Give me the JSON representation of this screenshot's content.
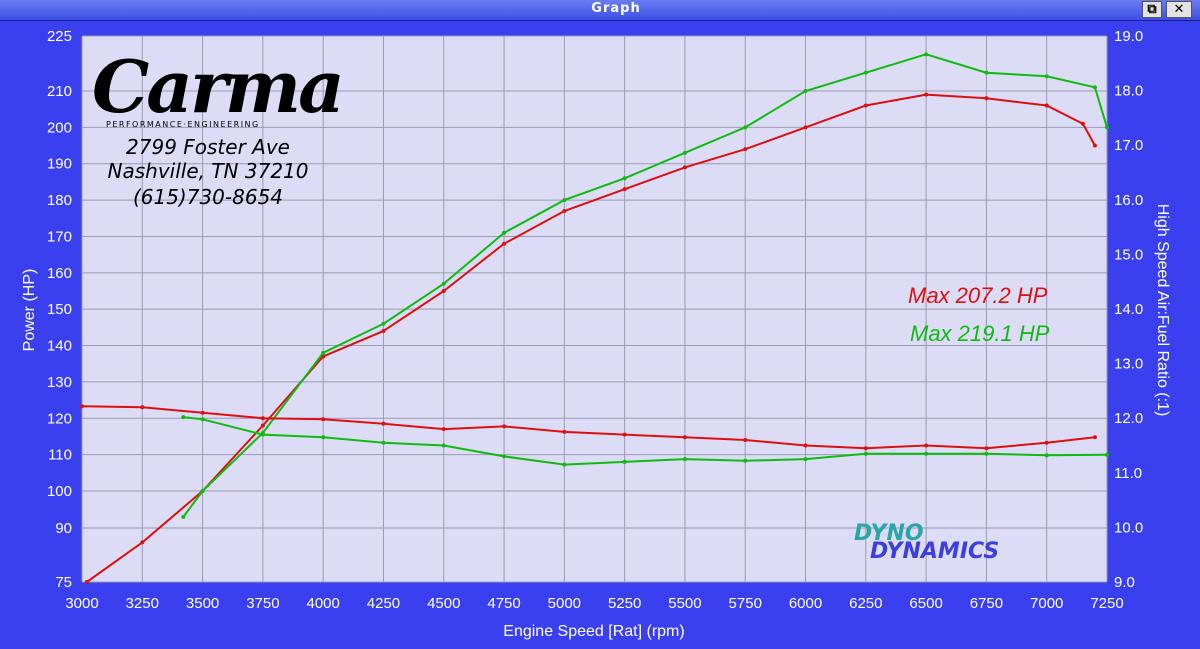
{
  "window": {
    "title": "Graph",
    "restore_glyph": "⧉",
    "close_glyph": "✕"
  },
  "logo": {
    "name": "Carma",
    "tagline": "PERFORMANCE·ENGINEERING",
    "address_line1": "2799 Foster Ave",
    "address_line2": "Nashville, TN 37210",
    "phone": "(615)730-8654"
  },
  "watermark": {
    "line1": "DYNO",
    "line2": "DYNAMICS"
  },
  "colors": {
    "background": "#3a3ff0",
    "plot_bg": "#dcdcf6",
    "grid": "#9a9ab0",
    "run1": "#dd1010",
    "run2": "#10bb10",
    "axis_text": "#ffffff"
  },
  "chart_data": {
    "type": "line",
    "xlabel": "Engine Speed [Rat] (rpm)",
    "ylabel_left": "Power (HP)",
    "ylabel_right": "High Speed Air:Fuel Ratio (:1)",
    "xlim": [
      3000,
      7250
    ],
    "x_ticks": [
      3000,
      3250,
      3500,
      3750,
      4000,
      4250,
      4500,
      4750,
      5000,
      5250,
      5500,
      5750,
      6000,
      6250,
      6500,
      6750,
      7000,
      7250
    ],
    "y_left_ticks": [
      75,
      90,
      100,
      110,
      120,
      130,
      140,
      150,
      160,
      170,
      180,
      190,
      200,
      210,
      225
    ],
    "y_right_ticks": [
      9.0,
      10.0,
      11.0,
      12.0,
      13.0,
      14.0,
      15.0,
      16.0,
      17.0,
      18.0,
      19.0
    ],
    "annotations": [
      {
        "text": "Max 207.2 HP",
        "series": "run1"
      },
      {
        "text": "Max 219.1 HP",
        "series": "run2"
      }
    ],
    "series": [
      {
        "id": "run1",
        "measure": "power",
        "x": [
          3020,
          3250,
          3500,
          3750,
          4000,
          4250,
          4500,
          4750,
          5000,
          5250,
          5500,
          5750,
          6000,
          6250,
          6500,
          6750,
          7000,
          7150,
          7200
        ],
        "y": [
          75,
          86,
          100,
          118,
          137,
          144,
          155,
          168,
          177,
          183,
          189,
          194,
          200,
          206,
          209,
          208,
          206,
          201,
          195
        ]
      },
      {
        "id": "run2",
        "measure": "power",
        "x": [
          3420,
          3500,
          3750,
          4000,
          4250,
          4500,
          4750,
          5000,
          5250,
          5500,
          5750,
          6000,
          6250,
          6500,
          6750,
          7000,
          7200,
          7250
        ],
        "y": [
          93,
          100,
          116,
          138,
          146,
          157,
          171,
          180,
          186,
          193,
          200,
          210,
          215,
          220,
          215,
          214,
          211,
          200
        ]
      },
      {
        "id": "run1",
        "measure": "afr",
        "x": [
          3000,
          3250,
          3500,
          3750,
          4000,
          4250,
          4500,
          4750,
          5000,
          5250,
          5500,
          5750,
          6000,
          6250,
          6500,
          6750,
          7000,
          7200
        ],
        "y": [
          12.22,
          12.2,
          12.1,
          12.0,
          11.98,
          11.9,
          11.8,
          11.85,
          11.75,
          11.7,
          11.65,
          11.6,
          11.5,
          11.45,
          11.5,
          11.45,
          11.55,
          11.65
        ]
      },
      {
        "id": "run2",
        "measure": "afr",
        "x": [
          3420,
          3500,
          3750,
          4000,
          4250,
          4500,
          4750,
          5000,
          5250,
          5500,
          5750,
          6000,
          6250,
          6500,
          6750,
          7000,
          7250
        ],
        "y": [
          12.02,
          11.98,
          11.7,
          11.65,
          11.55,
          11.5,
          11.3,
          11.15,
          11.2,
          11.25,
          11.22,
          11.25,
          11.35,
          11.35,
          11.35,
          11.32,
          11.33
        ]
      }
    ]
  }
}
